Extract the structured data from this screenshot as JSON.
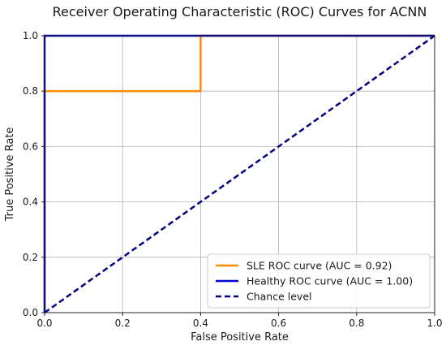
{
  "chart_data": {
    "type": "line",
    "title": "Receiver Operating Characteristic (ROC) Curves for ACNN",
    "xlabel": "False Positive Rate",
    "ylabel": "True Positive Rate",
    "xlim": [
      0.0,
      1.0
    ],
    "ylim": [
      0.0,
      1.0
    ],
    "xticks": [
      "0.0",
      "0.2",
      "0.4",
      "0.6",
      "0.8",
      "1.0"
    ],
    "yticks": [
      "0.0",
      "0.2",
      "0.4",
      "0.6",
      "0.8",
      "1.0"
    ],
    "grid": true,
    "legend_position": "lower right",
    "series": [
      {
        "name": "SLE ROC curve (AUC = 0.92)",
        "color": "#ff8c00",
        "dash": "solid",
        "x": [
          0.0,
          0.0,
          0.4,
          0.4,
          1.0
        ],
        "y": [
          0.0,
          0.8,
          0.8,
          1.0,
          1.0
        ]
      },
      {
        "name": "Healthy ROC curve (AUC = 1.00)",
        "color": "#0000cd",
        "dash": "solid",
        "x": [
          0.0,
          0.0,
          1.0
        ],
        "y": [
          0.0,
          1.0,
          1.0
        ]
      },
      {
        "name": "Chance level",
        "color": "#000080",
        "dash": "dashed",
        "x": [
          0.0,
          1.0
        ],
        "y": [
          0.0,
          1.0
        ]
      }
    ]
  }
}
